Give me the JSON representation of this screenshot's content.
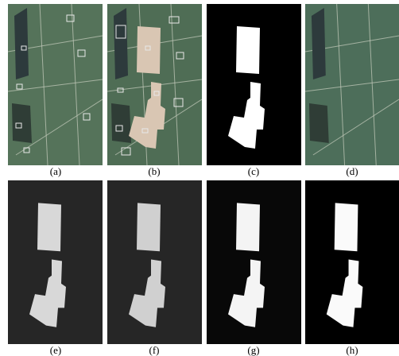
{
  "panels": {
    "labels": [
      "(a)",
      "(b)",
      "(c)",
      "(d)",
      "(e)",
      "(f)",
      "(g)",
      "(h)"
    ]
  }
}
